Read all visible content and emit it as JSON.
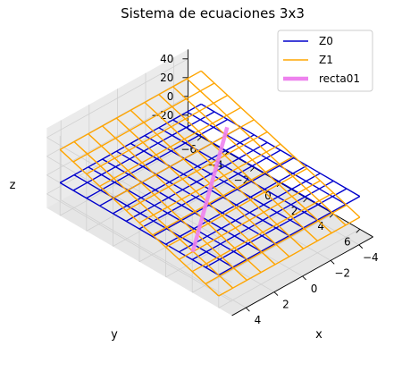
{
  "chart_data": {
    "type": "surface-3d-wireframe",
    "title": "Sistema de ecuaciones 3x3",
    "xlabel": "x",
    "ylabel": "y",
    "zlabel": "z",
    "xlim": [
      -5,
      5
    ],
    "ylim": [
      -7,
      7
    ],
    "zlim": [
      -35,
      50
    ],
    "xticks": [
      "−4",
      "−2",
      "0",
      "2",
      "4"
    ],
    "xtick_values": [
      -4,
      -2,
      0,
      2,
      4
    ],
    "yticks": [
      "−6",
      "−4",
      "−2",
      "0",
      "2",
      "4",
      "6"
    ],
    "ytick_values": [
      -6,
      -4,
      -2,
      0,
      2,
      4,
      6
    ],
    "zticks": [
      "−20",
      "0",
      "20",
      "40"
    ],
    "ztick_values": [
      -20,
      0,
      20,
      40
    ],
    "grid": true,
    "legend_position": "top-right",
    "series": [
      {
        "name": "Z0",
        "kind": "wireframe",
        "color": "#0000cc",
        "grid_x": [
          -5,
          -4,
          -3,
          -2,
          -1,
          0,
          1,
          2,
          3,
          4,
          5
        ],
        "grid_y": [
          -6,
          -5,
          -4,
          -3,
          -2,
          -1,
          0,
          1,
          2,
          3,
          4,
          5,
          6
        ],
        "z_plane": {
          "a": 0,
          "b": 0,
          "c": 0
        }
      },
      {
        "name": "Z1",
        "kind": "wireframe",
        "color": "#ffa500",
        "grid_x": [
          -5,
          -4,
          -3,
          -2,
          -1,
          0,
          1,
          2,
          3,
          4,
          5
        ],
        "grid_y": [
          -6,
          -5,
          -4,
          -3,
          -2,
          -1,
          0,
          1,
          2,
          3,
          4,
          5,
          6
        ],
        "z_plane": {
          "a": 0,
          "b": -4.8,
          "c": 6.5
        }
      },
      {
        "name": "recta01",
        "kind": "line",
        "color": "#ee82ee",
        "points": [
          [
            -4.5,
            -3.5,
            0
          ],
          [
            4.5,
            3.5,
            0
          ]
        ]
      }
    ]
  }
}
